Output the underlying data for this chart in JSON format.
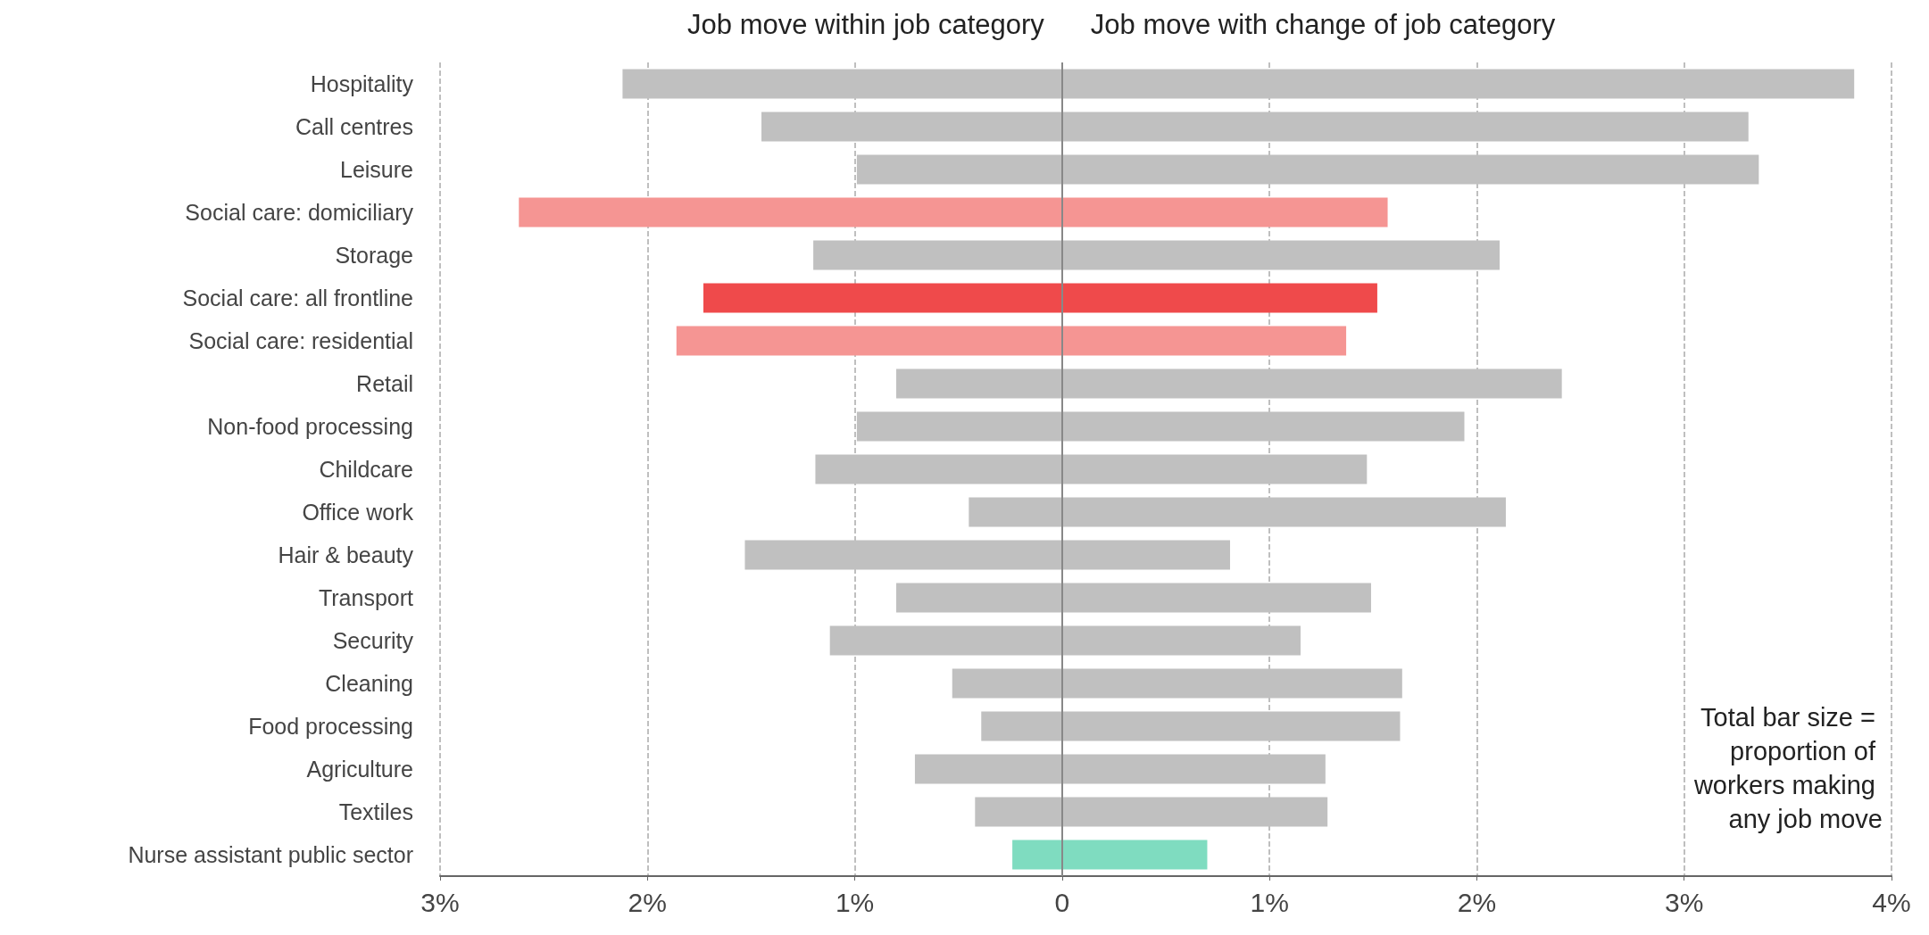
{
  "chart_data": {
    "type": "bar",
    "orientation": "horizontal",
    "stacked": true,
    "categories": [
      "Hospitality",
      "Call centres",
      "Leisure",
      "Social care: domiciliary",
      "Storage",
      "Social care: all frontline",
      "Social care: residential",
      "Retail",
      "Non-food processing",
      "Childcare",
      "Office work",
      "Hair & beauty",
      "Transport",
      "Security",
      "Cleaning",
      "Food processing",
      "Agriculture",
      "Textiles",
      "Nurse assistant public sector"
    ],
    "series": [
      {
        "name": "Job move within job category",
        "colors": [
          "#c0c0c0",
          "#c0c0c0",
          "#c0c0c0",
          "#f59593",
          "#c0c0c0",
          "#ef4a4b",
          "#f59593",
          "#c0c0c0",
          "#c0c0c0",
          "#c0c0c0",
          "#c0c0c0",
          "#c0c0c0",
          "#c0c0c0",
          "#c0c0c0",
          "#c0c0c0",
          "#c0c0c0",
          "#c0c0c0",
          "#c0c0c0",
          "#7fdcc0"
        ],
        "values": [
          -2.12,
          -1.45,
          -0.99,
          -2.62,
          -1.2,
          -1.73,
          -1.86,
          -0.8,
          -0.99,
          -1.19,
          -0.45,
          -1.53,
          -0.8,
          -1.12,
          -0.53,
          -0.39,
          -0.71,
          -0.42,
          -0.24
        ]
      },
      {
        "name": "Job move with change of job category",
        "colors": [
          "#c0c0c0",
          "#c0c0c0",
          "#c0c0c0",
          "#f59593",
          "#c0c0c0",
          "#ef4a4b",
          "#f59593",
          "#c0c0c0",
          "#c0c0c0",
          "#c0c0c0",
          "#c0c0c0",
          "#c0c0c0",
          "#c0c0c0",
          "#c0c0c0",
          "#c0c0c0",
          "#c0c0c0",
          "#c0c0c0",
          "#c0c0c0",
          "#7fdcc0"
        ],
        "values": [
          3.82,
          3.31,
          3.36,
          1.57,
          2.11,
          1.52,
          1.37,
          2.41,
          1.94,
          1.47,
          2.14,
          0.81,
          1.49,
          1.15,
          1.64,
          1.63,
          1.27,
          1.28,
          0.7
        ]
      }
    ],
    "xlim": [
      -3,
      4
    ],
    "xticks": [
      {
        "value": -3,
        "label": "3%"
      },
      {
        "value": -2,
        "label": "2%"
      },
      {
        "value": -1,
        "label": "1%"
      },
      {
        "value": 0,
        "label": "0"
      },
      {
        "value": 1,
        "label": "1%"
      },
      {
        "value": 2,
        "label": "2%"
      },
      {
        "value": 3,
        "label": "3%"
      },
      {
        "value": 4,
        "label": "4%"
      }
    ],
    "grid": "x",
    "ref_lines": [
      {
        "axis": "x",
        "value": 0,
        "color": "#888888"
      }
    ],
    "annotations": [
      "Total bar size = proportion of workers making any job move"
    ],
    "legend": false
  }
}
